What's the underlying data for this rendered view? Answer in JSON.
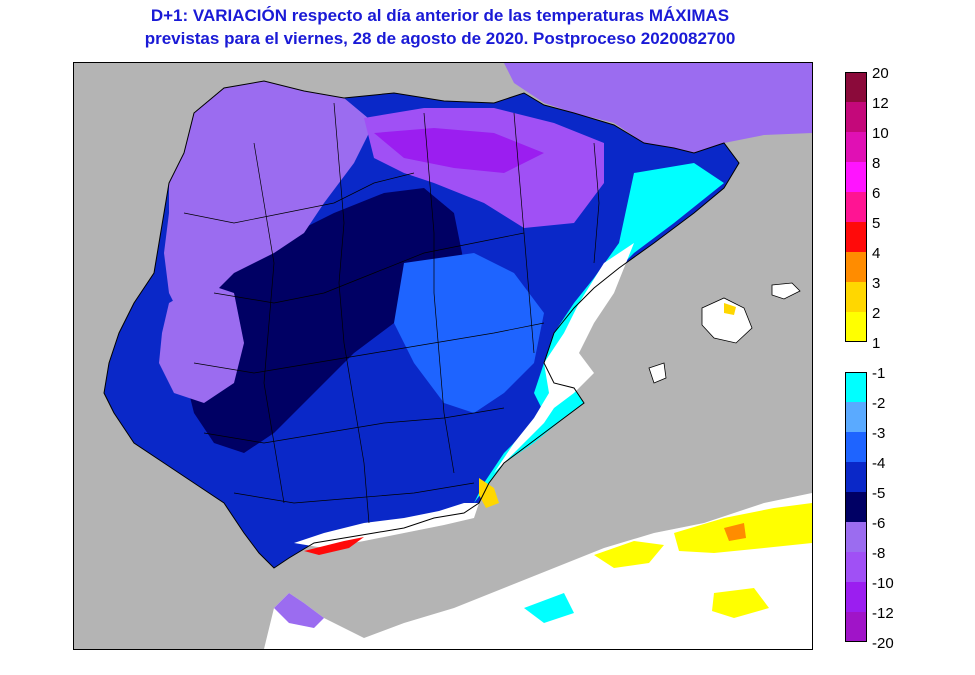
{
  "title": {
    "line1": "D+1:  VARIACIÓN respecto al día anterior de las temperaturas MÁXIMAS",
    "line2": "previstas para el viernes, 28 de agosto de 2020. Postproceso 2020082700"
  },
  "legend": {
    "warm": [
      {
        "label": "20",
        "color": "#8b0a3a"
      },
      {
        "label": "12",
        "color": "#c4087a"
      },
      {
        "label": "10",
        "color": "#e010b4"
      },
      {
        "label": "8",
        "color": "#ff14ff"
      },
      {
        "label": "6",
        "color": "#ff1493"
      },
      {
        "label": "5",
        "color": "#ff0a0a"
      },
      {
        "label": "4",
        "color": "#ff8c00"
      },
      {
        "label": "3",
        "color": "#ffd700"
      },
      {
        "label": "2",
        "color": "#ffff00"
      },
      {
        "label": "1",
        "color": ""
      }
    ],
    "cool": [
      {
        "label": "-1",
        "color": "#00ffff"
      },
      {
        "label": "-2",
        "color": "#5aaaff"
      },
      {
        "label": "-3",
        "color": "#1e64ff"
      },
      {
        "label": "-4",
        "color": "#0a28c8"
      },
      {
        "label": "-5",
        "color": "#000064"
      },
      {
        "label": "-6",
        "color": "#9b6cf0"
      },
      {
        "label": "-8",
        "color": "#a050f5"
      },
      {
        "label": "-10",
        "color": "#9b1ef0"
      },
      {
        "label": "-12",
        "color": "#a014c8"
      },
      {
        "label": "-20",
        "color": ""
      }
    ]
  },
  "colors": {
    "sea": "#b4b4b4",
    "title": "#1a1ad6"
  }
}
